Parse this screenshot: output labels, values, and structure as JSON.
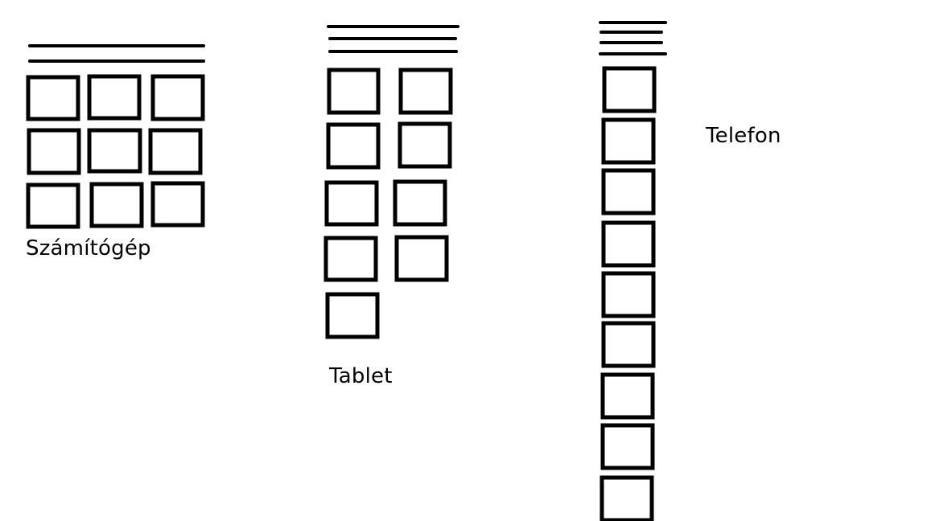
{
  "diagram": {
    "stroke_color": "#000000",
    "background_color": "#ffffff",
    "layouts": [
      {
        "id": "desktop",
        "label": "Számítógép",
        "menu_lines": 2,
        "columns": 3,
        "tiles": 9
      },
      {
        "id": "tablet",
        "label": "Tablet",
        "menu_lines": 3,
        "columns": 2,
        "tiles": 9
      },
      {
        "id": "phone",
        "label": "Telefon",
        "menu_lines": 4,
        "columns": 1,
        "tiles": 9
      }
    ]
  }
}
